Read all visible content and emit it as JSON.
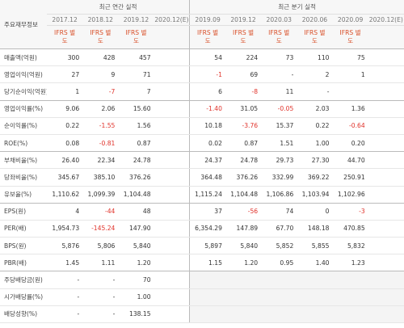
{
  "header": {
    "row_title": "주요재무정보",
    "annual_title": "최근 연간 실적",
    "quarter_title": "최근 분기 실적",
    "periods": [
      "2017.12",
      "2018.12",
      "2019.12",
      "2020.12(E)",
      "2019.09",
      "2019.12",
      "2020.03",
      "2020.06",
      "2020.09",
      "2020.12(E)"
    ],
    "standards": [
      "IFRS 별도",
      "IFRS 별도",
      "IFRS 별도",
      null,
      "IFRS 별도",
      "IFRS 별도",
      "IFRS 별도",
      "IFRS 별도",
      "IFRS 별도",
      null
    ]
  },
  "table": {
    "rows": [
      {
        "label": "매출액(억원)",
        "cells": [
          "300",
          "428",
          "457",
          null,
          "54",
          "224",
          "73",
          "110",
          "75",
          null
        ]
      },
      {
        "label": "영업이익(억원)",
        "cells": [
          "27",
          "9",
          "71",
          null,
          "-1",
          "69",
          "-",
          "2",
          "1",
          null
        ]
      },
      {
        "label": "당기순이익(억원)",
        "cells": [
          "1",
          "-7",
          "7",
          null,
          "6",
          "-8",
          "11",
          "-",
          null,
          null
        ]
      },
      {
        "label": "영업이익률(%)",
        "cells": [
          "9.06",
          "2.06",
          "15.60",
          null,
          "-1.40",
          "31.05",
          "-0.05",
          "2.03",
          "1.36",
          null
        ]
      },
      {
        "label": "순이익률(%)",
        "cells": [
          "0.22",
          "-1.55",
          "1.56",
          null,
          "10.18",
          "-3.76",
          "15.37",
          "0.22",
          "-0.64",
          null
        ]
      },
      {
        "label": "ROE(%)",
        "cells": [
          "0.08",
          "-0.81",
          "0.87",
          null,
          "0.02",
          "0.87",
          "1.51",
          "1.00",
          "0.20",
          null
        ]
      },
      {
        "label": "부채비율(%)",
        "cells": [
          "26.40",
          "22.34",
          "24.78",
          null,
          "24.37",
          "24.78",
          "29.73",
          "27.30",
          "44.70",
          null
        ]
      },
      {
        "label": "당좌비율(%)",
        "cells": [
          "345.67",
          "385.10",
          "376.26",
          null,
          "364.48",
          "376.26",
          "332.99",
          "369.22",
          "250.91",
          null
        ]
      },
      {
        "label": "유보율(%)",
        "cells": [
          "1,110.62",
          "1,099.39",
          "1,104.48",
          null,
          "1,115.24",
          "1,104.48",
          "1,106.86",
          "1,103.94",
          "1,102.96",
          null
        ]
      },
      {
        "label": "EPS(원)",
        "cells": [
          "4",
          "-44",
          "48",
          null,
          "37",
          "-56",
          "74",
          "0",
          "-3",
          null
        ]
      },
      {
        "label": "PER(배)",
        "cells": [
          "1,954.73",
          "-145.24",
          "147.90",
          null,
          "6,354.29",
          "147.89",
          "67.70",
          "148.18",
          "470.85",
          null
        ]
      },
      {
        "label": "BPS(원)",
        "cells": [
          "5,876",
          "5,806",
          "5,840",
          null,
          "5,897",
          "5,840",
          "5,852",
          "5,855",
          "5,832",
          null
        ]
      },
      {
        "label": "PBR(배)",
        "cells": [
          "1.45",
          "1.11",
          "1.20",
          null,
          "1.15",
          "1.20",
          "0.95",
          "1.40",
          "1.23",
          null
        ]
      },
      {
        "label": "주당배당금(원)",
        "cells": [
          "-",
          "-",
          "70",
          null,
          null,
          null,
          null,
          null,
          null,
          null
        ]
      },
      {
        "label": "시가배당률(%)",
        "cells": [
          "-",
          "-",
          "1.00",
          null,
          null,
          null,
          null,
          null,
          null,
          null
        ]
      },
      {
        "label": "배당성향(%)",
        "cells": [
          "-",
          "-",
          "138.15",
          null,
          null,
          null,
          null,
          null,
          null,
          null
        ]
      }
    ]
  }
}
